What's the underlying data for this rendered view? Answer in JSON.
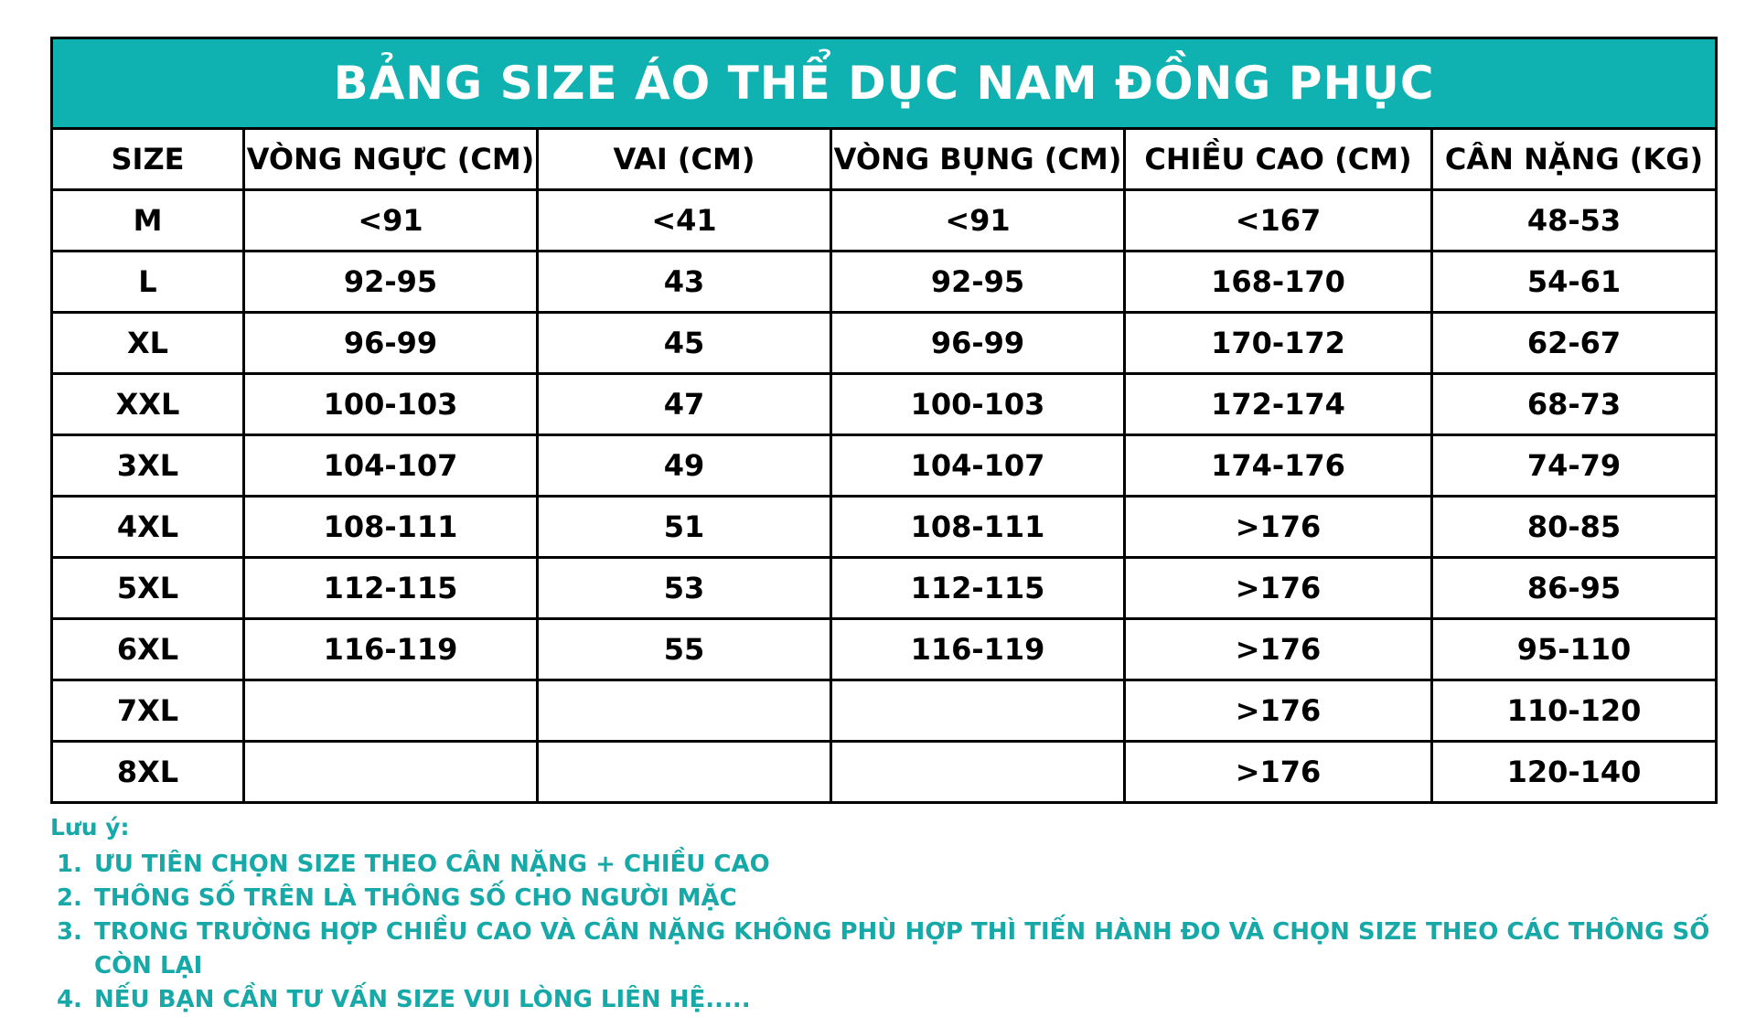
{
  "table": {
    "title": "BẢNG SIZE ÁO THỂ DỤC NAM ĐỒNG PHỤC",
    "headers": [
      "SIZE",
      "VÒNG NGỰC (CM)",
      "VAI (CM)",
      "VÒNG BỤNG (CM)",
      "CHIỀU CAO (CM)",
      "CÂN NẶNG (KG)"
    ],
    "rows": [
      [
        "M",
        "<91",
        "<41",
        "<91",
        "<167",
        "48-53"
      ],
      [
        "L",
        "92-95",
        "43",
        "92-95",
        "168-170",
        "54-61"
      ],
      [
        "XL",
        "96-99",
        "45",
        "96-99",
        "170-172",
        "62-67"
      ],
      [
        "XXL",
        "100-103",
        "47",
        "100-103",
        "172-174",
        "68-73"
      ],
      [
        "3XL",
        "104-107",
        "49",
        "104-107",
        "174-176",
        "74-79"
      ],
      [
        "4XL",
        "108-111",
        "51",
        "108-111",
        ">176",
        "80-85"
      ],
      [
        "5XL",
        "112-115",
        "53",
        "112-115",
        ">176",
        "86-95"
      ],
      [
        "6XL",
        "116-119",
        "55",
        "116-119",
        ">176",
        "95-110"
      ],
      [
        "7XL",
        "",
        "",
        "",
        ">176",
        "110-120"
      ],
      [
        "8XL",
        "",
        "",
        "",
        ">176",
        "120-140"
      ]
    ],
    "title_bg_color": "#0fb1b1",
    "title_text_color": "#ffffff"
  },
  "notes": {
    "label": "Lưu ý:",
    "items": [
      "ƯU TIÊN CHỌN SIZE THEO CÂN NẶNG + CHIỀU CAO",
      "THÔNG SỐ TRÊN LÀ THÔNG SỐ CHO NGƯỜI MẶC",
      "TRONG TRƯỜNG HỢP CHIỀU CAO VÀ CÂN NẶNG KHÔNG PHÙ HỢP THÌ TIẾN HÀNH ĐO VÀ CHỌN SIZE THEO CÁC THÔNG SỐ CÒN LẠI",
      "NẾU BẠN CẦN TƯ VẤN SIZE VUI LÒNG LIÊN HỆ....."
    ],
    "color": "#17a8a8"
  }
}
